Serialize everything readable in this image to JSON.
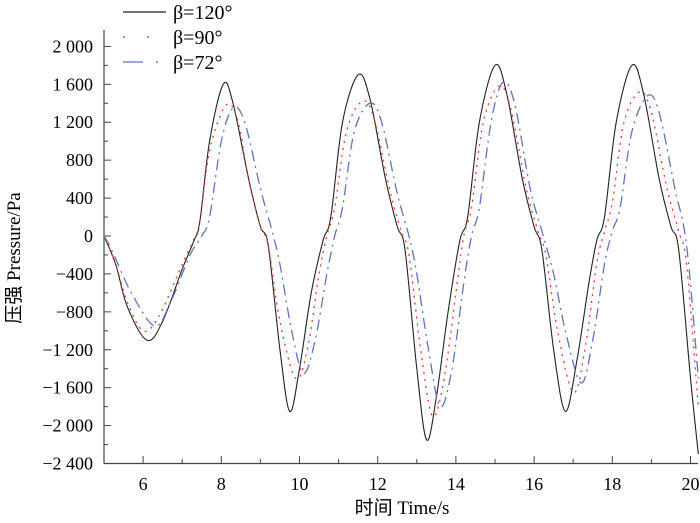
{
  "chart_data": {
    "type": "line",
    "title": "",
    "xlabel": "时间 Time/s",
    "ylabel": "压强 Pressure/Pa",
    "xlim": [
      5,
      20.2
    ],
    "ylim": [
      -2400,
      2000
    ],
    "xticks": [
      6,
      8,
      10,
      12,
      14,
      16,
      18,
      20
    ],
    "xtick_labels": [
      "6",
      "8",
      "10",
      "12",
      "14",
      "16",
      "18",
      "20"
    ],
    "yticks": [
      2000,
      1600,
      1200,
      800,
      400,
      0,
      -400,
      -800,
      -1200,
      -1600,
      -2000,
      -2400
    ],
    "ytick_labels": [
      "2 000",
      "1 600",
      "1 200",
      "800",
      "400",
      "0",
      "−400",
      "−800",
      "−1 200",
      "−1 600",
      "−2 000",
      "−2 400"
    ],
    "grid": false,
    "legend_position": "top-left",
    "series": [
      {
        "name": "β=120°",
        "color": "#222222",
        "style": "solid",
        "points": [
          [
            5,
            0
          ],
          [
            5.3,
            -300
          ],
          [
            5.6,
            -750
          ],
          [
            6.1,
            -1100
          ],
          [
            6.5,
            -900
          ],
          [
            7.0,
            -350
          ],
          [
            7.3,
            -50
          ],
          [
            7.45,
            150
          ],
          [
            7.7,
            1000
          ],
          [
            8.05,
            1600
          ],
          [
            8.3,
            1400
          ],
          [
            8.7,
            600
          ],
          [
            9.0,
            100
          ],
          [
            9.2,
            -100
          ],
          [
            9.5,
            -1200
          ],
          [
            9.75,
            -1850
          ],
          [
            10.0,
            -1400
          ],
          [
            10.3,
            -600
          ],
          [
            10.6,
            -50
          ],
          [
            10.8,
            200
          ],
          [
            11.1,
            1200
          ],
          [
            11.5,
            1700
          ],
          [
            11.8,
            1450
          ],
          [
            12.2,
            600
          ],
          [
            12.5,
            100
          ],
          [
            12.7,
            -150
          ],
          [
            13.0,
            -1400
          ],
          [
            13.25,
            -2150
          ],
          [
            13.5,
            -1700
          ],
          [
            13.8,
            -800
          ],
          [
            14.1,
            -50
          ],
          [
            14.3,
            200
          ],
          [
            14.6,
            1200
          ],
          [
            15.0,
            1800
          ],
          [
            15.3,
            1500
          ],
          [
            15.7,
            600
          ],
          [
            16.0,
            100
          ],
          [
            16.2,
            -150
          ],
          [
            16.5,
            -1200
          ],
          [
            16.8,
            -1850
          ],
          [
            17.1,
            -1300
          ],
          [
            17.4,
            -500
          ],
          [
            17.6,
            -50
          ],
          [
            17.8,
            200
          ],
          [
            18.1,
            1200
          ],
          [
            18.5,
            1800
          ],
          [
            18.8,
            1500
          ],
          [
            19.2,
            600
          ],
          [
            19.5,
            100
          ],
          [
            19.7,
            -150
          ],
          [
            20.0,
            -1500
          ],
          [
            20.2,
            -2300
          ]
        ]
      },
      {
        "name": "β=90°",
        "color": "#ff3333",
        "style": "dotted",
        "points": [
          [
            5,
            0
          ],
          [
            5.3,
            -300
          ],
          [
            5.6,
            -700
          ],
          [
            6.0,
            -1000
          ],
          [
            6.4,
            -850
          ],
          [
            7.0,
            -300
          ],
          [
            7.3,
            -30
          ],
          [
            7.45,
            150
          ],
          [
            7.7,
            900
          ],
          [
            8.1,
            1370
          ],
          [
            8.4,
            1250
          ],
          [
            8.7,
            600
          ],
          [
            9.0,
            100
          ],
          [
            9.2,
            -100
          ],
          [
            9.5,
            -900
          ],
          [
            9.9,
            -1500
          ],
          [
            10.2,
            -1200
          ],
          [
            10.5,
            -400
          ],
          [
            10.7,
            0
          ],
          [
            10.9,
            300
          ],
          [
            11.2,
            1100
          ],
          [
            11.6,
            1420
          ],
          [
            11.9,
            1250
          ],
          [
            12.3,
            500
          ],
          [
            12.6,
            50
          ],
          [
            12.8,
            -200
          ],
          [
            13.1,
            -1200
          ],
          [
            13.4,
            -1900
          ],
          [
            13.7,
            -1500
          ],
          [
            14.0,
            -600
          ],
          [
            14.2,
            0
          ],
          [
            14.4,
            300
          ],
          [
            14.7,
            1200
          ],
          [
            15.1,
            1580
          ],
          [
            15.4,
            1350
          ],
          [
            15.8,
            500
          ],
          [
            16.1,
            50
          ],
          [
            16.3,
            -200
          ],
          [
            16.6,
            -1000
          ],
          [
            17.0,
            -1650
          ],
          [
            17.3,
            -1200
          ],
          [
            17.6,
            -300
          ],
          [
            17.8,
            50
          ],
          [
            18.0,
            350
          ],
          [
            18.3,
            1200
          ],
          [
            18.7,
            1520
          ],
          [
            19.0,
            1300
          ],
          [
            19.4,
            500
          ],
          [
            19.7,
            50
          ],
          [
            19.9,
            -300
          ],
          [
            20.2,
            -1800
          ]
        ]
      },
      {
        "name": "β=72°",
        "color": "#6670c0",
        "style": "dashdot",
        "points": [
          [
            5,
            0
          ],
          [
            5.2,
            -150
          ],
          [
            5.7,
            -600
          ],
          [
            6.3,
            -950
          ],
          [
            6.7,
            -700
          ],
          [
            7.2,
            -200
          ],
          [
            7.5,
            0
          ],
          [
            7.7,
            200
          ],
          [
            8.0,
            1000
          ],
          [
            8.3,
            1350
          ],
          [
            8.6,
            1200
          ],
          [
            9.0,
            500
          ],
          [
            9.3,
            50
          ],
          [
            9.5,
            -300
          ],
          [
            9.8,
            -1000
          ],
          [
            10.1,
            -1450
          ],
          [
            10.4,
            -1100
          ],
          [
            10.7,
            -400
          ],
          [
            10.9,
            0
          ],
          [
            11.1,
            300
          ],
          [
            11.4,
            1100
          ],
          [
            11.8,
            1400
          ],
          [
            12.1,
            1200
          ],
          [
            12.5,
            450
          ],
          [
            12.8,
            0
          ],
          [
            13.0,
            -400
          ],
          [
            13.3,
            -1200
          ],
          [
            13.6,
            -1800
          ],
          [
            13.9,
            -1400
          ],
          [
            14.2,
            -500
          ],
          [
            14.4,
            0
          ],
          [
            14.6,
            300
          ],
          [
            14.9,
            1200
          ],
          [
            15.2,
            1620
          ],
          [
            15.5,
            1400
          ],
          [
            15.9,
            500
          ],
          [
            16.2,
            50
          ],
          [
            16.5,
            -400
          ],
          [
            16.8,
            -1000
          ],
          [
            17.2,
            -1550
          ],
          [
            17.5,
            -1100
          ],
          [
            17.8,
            -300
          ],
          [
            18.0,
            50
          ],
          [
            18.2,
            300
          ],
          [
            18.5,
            1100
          ],
          [
            18.9,
            1480
          ],
          [
            19.2,
            1300
          ],
          [
            19.6,
            500
          ],
          [
            19.9,
            -100
          ],
          [
            20.2,
            -1500
          ]
        ]
      }
    ]
  }
}
